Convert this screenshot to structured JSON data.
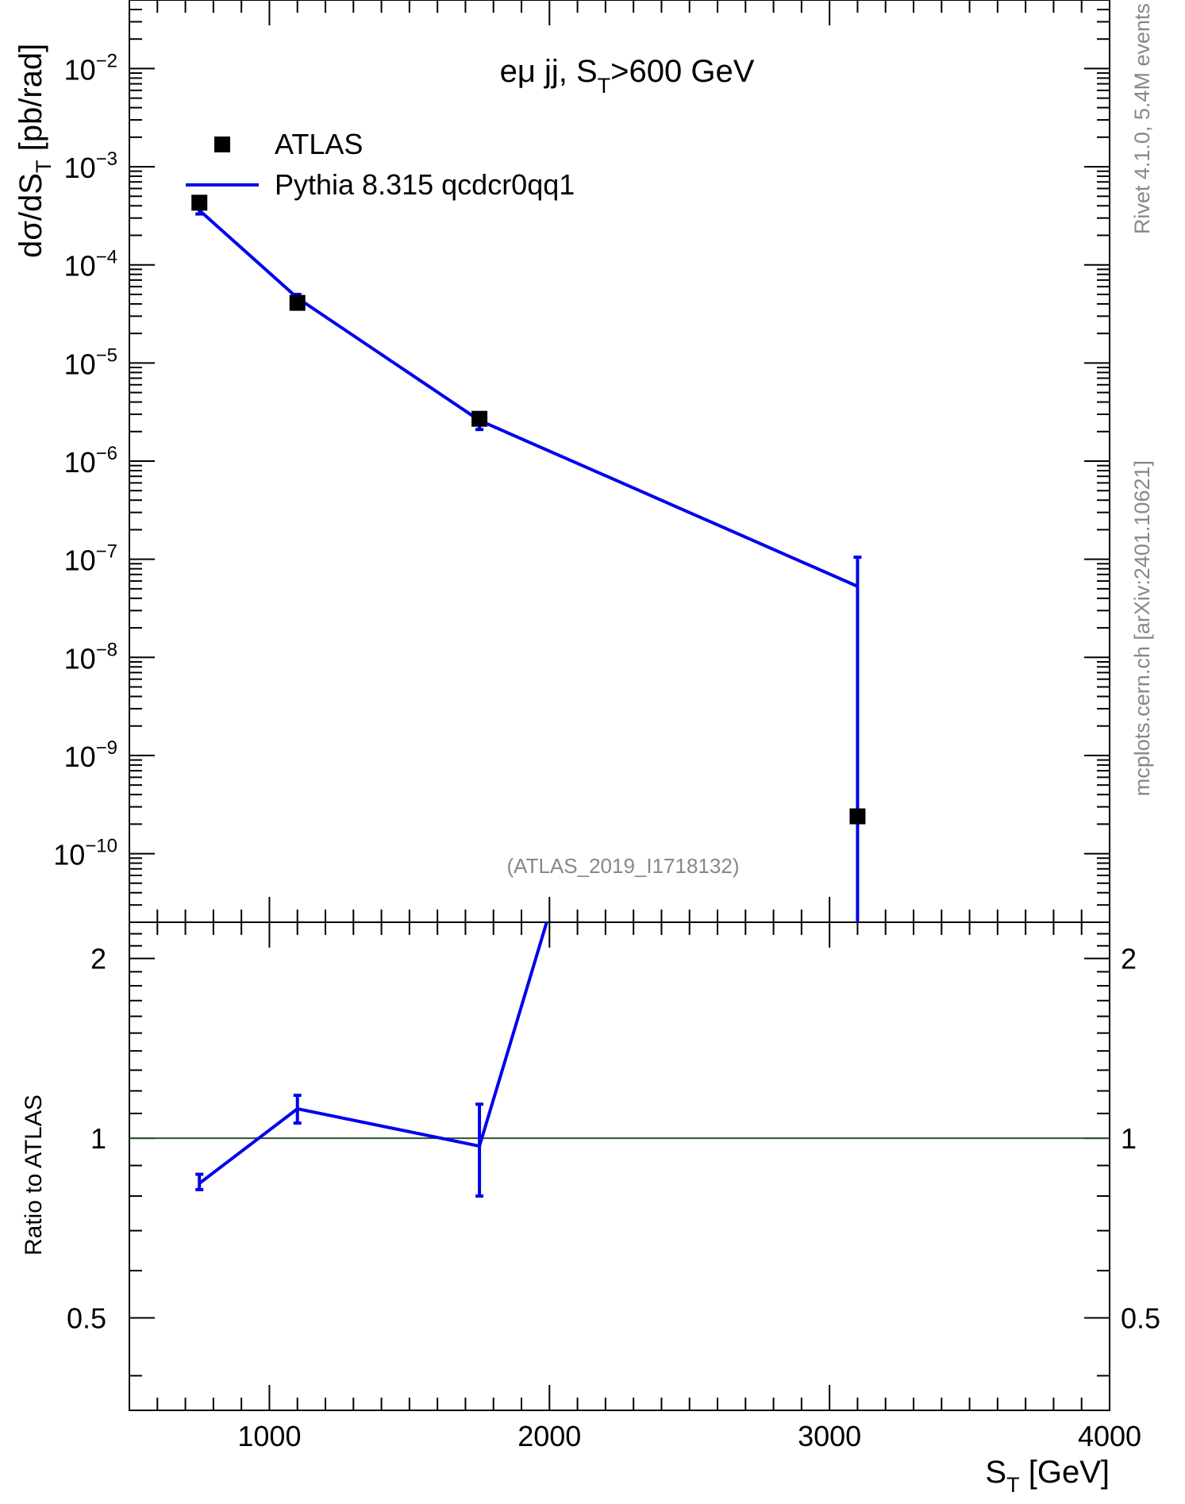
{
  "chart_data": [
    {
      "type": "scatter",
      "panel": "main",
      "title": "eμ jj, S_T>600 GeV",
      "ylabel": "dσ/dS_T [pb/rad]",
      "xlabel": "",
      "xlim": [
        500,
        4000
      ],
      "ylim": [
        2e-11,
        0.05
      ],
      "log_y": true,
      "y_tick_labels": [
        "10^-2",
        "10^-3",
        "10^-4",
        "10^-5",
        "10^-6",
        "10^-7",
        "10^-8",
        "10^-9",
        "10^-10"
      ],
      "reference_label": "(ATLAS_2019_I1718132)",
      "legend_position": "top-left",
      "series": [
        {
          "name": "ATLAS",
          "style": "markers",
          "color": "#000000",
          "x": [
            750,
            1100,
            1750,
            3100
          ],
          "y": [
            0.00043,
            4.1e-05,
            2.7e-06,
            2.4e-10
          ]
        },
        {
          "name": "Pythia 8.315 qcdcr0qq1",
          "style": "line",
          "color": "#0000ee",
          "x": [
            750,
            1100,
            1750,
            3100
          ],
          "y": [
            0.00036,
            4.6e-05,
            2.6e-06,
            5.3e-08
          ],
          "err_low": [
            0.00033,
            4.2e-05,
            2.1e-06,
            1e-12
          ],
          "err_high": [
            0.00039,
            5e-05,
            3.1e-06,
            1.05e-07
          ]
        }
      ]
    },
    {
      "type": "line",
      "panel": "ratio",
      "ylabel": "Ratio to ATLAS",
      "xlabel": "S_T [GeV]",
      "xlim": [
        500,
        4000
      ],
      "ylim": [
        0.35,
        2.3
      ],
      "log_y": true,
      "x_tick_labels": [
        "1000",
        "2000",
        "3000",
        "4000"
      ],
      "y_tick_labels": [
        "2",
        "1",
        "0.5"
      ],
      "reference_line": 1,
      "series": [
        {
          "name": "Pythia 8.315 qcdcr0qq1",
          "color": "#0000ee",
          "x": [
            750,
            1100,
            1750,
            1990
          ],
          "y": [
            0.84,
            1.12,
            0.97,
            2.3
          ],
          "err_low": [
            0.82,
            1.06,
            0.8,
            null
          ],
          "err_high": [
            0.87,
            1.18,
            1.14,
            null
          ]
        }
      ]
    }
  ],
  "side_labels": {
    "top": "Rivet 4.1.0,  5.4M events",
    "bottom": "mcplots.cern.ch [arXiv:2401.10621]"
  },
  "colors": {
    "model": "#0000ee",
    "data": "#000000",
    "reference_line": "#2f4f2f",
    "side_text": "#888888"
  }
}
